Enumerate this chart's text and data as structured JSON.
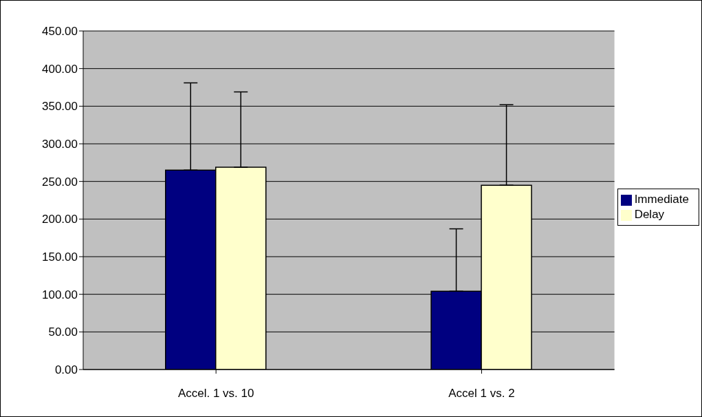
{
  "chart_data": {
    "type": "bar",
    "categories": [
      "Accel. 1 vs. 10",
      "Accel 1 vs. 2"
    ],
    "series": [
      {
        "name": "Immediate",
        "color": "#000080",
        "values": [
          265,
          104
        ],
        "errors": [
          [
            265,
            381
          ],
          [
            104,
            187
          ]
        ]
      },
      {
        "name": "Delay",
        "color": "#ffffcc",
        "values": [
          269,
          245
        ],
        "errors": [
          [
            269,
            369
          ],
          [
            245,
            352
          ]
        ]
      }
    ],
    "ylim": [
      0,
      450
    ],
    "yticks": [
      {
        "value": 0,
        "label": "0.00"
      },
      {
        "value": 50,
        "label": "50.00"
      },
      {
        "value": 100,
        "label": "100.00"
      },
      {
        "value": 150,
        "label": "150.00"
      },
      {
        "value": 200,
        "label": "200.00"
      },
      {
        "value": 250,
        "label": "250.00"
      },
      {
        "value": 300,
        "label": "300.00"
      },
      {
        "value": 350,
        "label": "350.00"
      },
      {
        "value": 400,
        "label": "400.00"
      },
      {
        "value": 450,
        "label": "450.00"
      }
    ],
    "grid": "y",
    "legend": "right"
  }
}
